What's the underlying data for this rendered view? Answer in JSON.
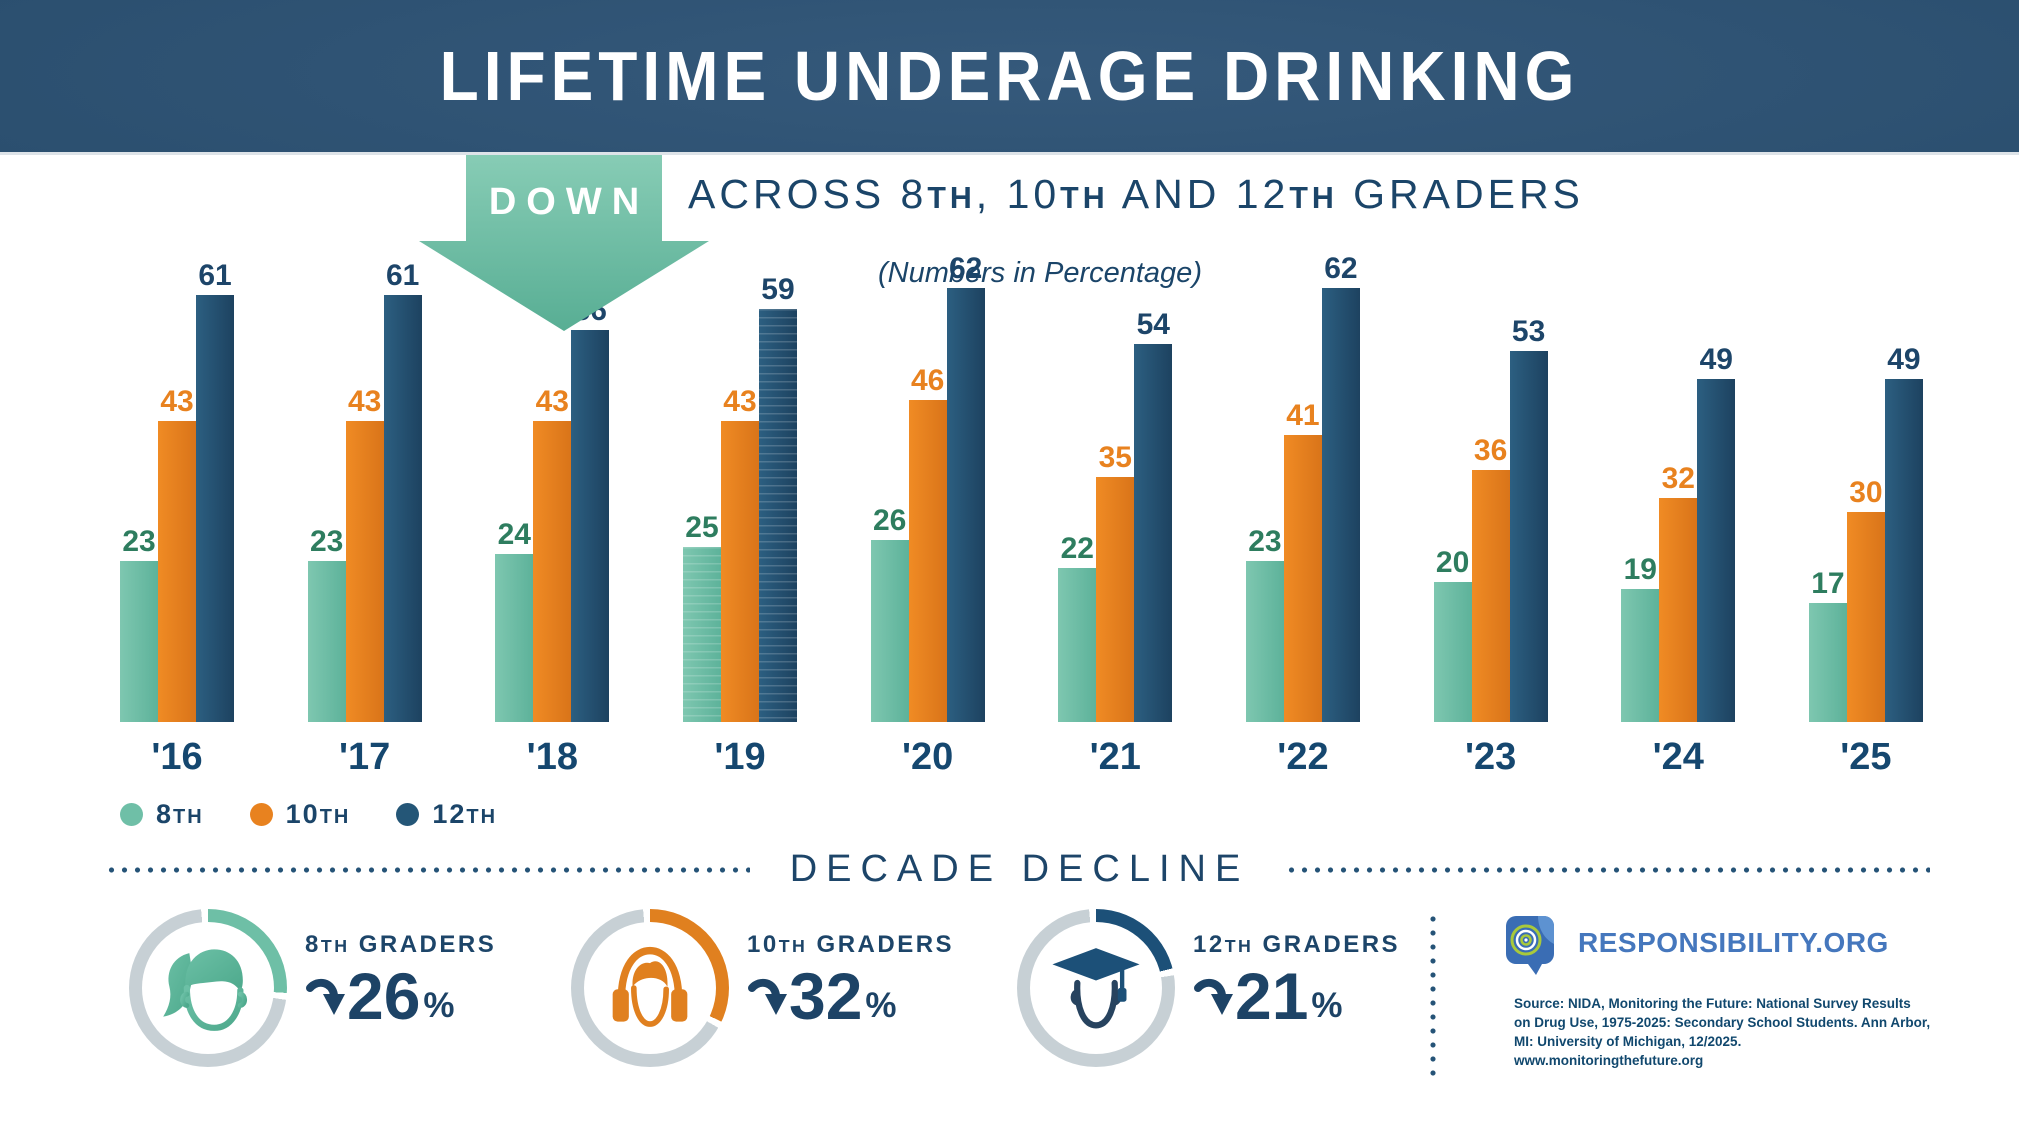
{
  "header": {
    "title": "LIFETIME UNDERAGE DRINKING"
  },
  "intro": {
    "down_label": "DOWN",
    "across_segments": [
      {
        "t": "ACROSS 8"
      },
      {
        "t": "TH",
        "s": true
      },
      {
        "t": ", 10"
      },
      {
        "t": "TH",
        "s": true
      },
      {
        "t": " AND 12"
      },
      {
        "t": "TH",
        "s": true
      },
      {
        "t": " GRADERS"
      }
    ],
    "across_plain": "ACROSS 8TH, 10TH AND 12TH GRADERS",
    "note": "(Numbers in Percentage)"
  },
  "chart_data": {
    "type": "bar",
    "title": "Lifetime underage drinking by grade",
    "unit": "percent",
    "categories": [
      "'16",
      "'17",
      "'18",
      "'19",
      "'20",
      "'21",
      "'22",
      "'23",
      "'24",
      "'25"
    ],
    "series": [
      {
        "name": "8TH",
        "color": "#6fbfa7",
        "label_color": "#2e7d5f",
        "values": [
          23,
          23,
          24,
          25,
          26,
          22,
          23,
          20,
          19,
          17
        ]
      },
      {
        "name": "10TH",
        "color": "#e8821f",
        "label_color": "#e8821f",
        "values": [
          43,
          43,
          43,
          43,
          46,
          35,
          41,
          36,
          32,
          30
        ]
      },
      {
        "name": "12TH",
        "color": "#245677",
        "label_color": "#1d4569",
        "values": [
          61,
          61,
          56,
          59,
          62,
          54,
          62,
          53,
          49,
          49
        ]
      }
    ],
    "ylim": [
      0,
      62
    ],
    "grid": false,
    "value_labels": true,
    "legend_position": "bottom-left",
    "striped_bars": {
      "category": "'19",
      "series": [
        "8TH",
        "12TH"
      ]
    }
  },
  "legend": {
    "items": [
      {
        "segments": [
          {
            "t": "8"
          },
          {
            "t": "TH",
            "s": true
          }
        ],
        "color": "#6fbfa7"
      },
      {
        "segments": [
          {
            "t": "10"
          },
          {
            "t": "TH",
            "s": true
          }
        ],
        "color": "#e8821f"
      },
      {
        "segments": [
          {
            "t": "12"
          },
          {
            "t": "TH",
            "s": true
          }
        ],
        "color": "#245677"
      }
    ]
  },
  "decade": {
    "title": "DECADE DECLINE",
    "stats": [
      {
        "group_segments": [
          {
            "t": "8"
          },
          {
            "t": "TH",
            "s": true
          },
          {
            "t": " GRADERS"
          }
        ],
        "value": 26,
        "display": "26",
        "unit": "%",
        "direction": "down",
        "ring_color": "#6ebfa6",
        "icon": "girl-face-icon"
      },
      {
        "group_segments": [
          {
            "t": "10"
          },
          {
            "t": "TH",
            "s": true
          },
          {
            "t": " GRADERS"
          }
        ],
        "value": 32,
        "display": "32",
        "unit": "%",
        "direction": "down",
        "ring_color": "#e0801f",
        "icon": "headphones-icon"
      },
      {
        "group_segments": [
          {
            "t": "12"
          },
          {
            "t": "TH",
            "s": true
          },
          {
            "t": " GRADERS"
          }
        ],
        "value": 21,
        "display": "21",
        "unit": "%",
        "direction": "down",
        "ring_color": "#1c5078",
        "icon": "graduate-cap-icon"
      }
    ]
  },
  "footer": {
    "brand": "RESPONSIBILITY.ORG",
    "source_lines": [
      "Source: NIDA, Monitoring the Future: National Survey Results",
      "on Drug Use, 1975-2025: Secondary School Students. Ann Arbor,",
      "MI: University of Michigan, 12/2025.",
      "www.monitoringthefuture.org"
    ]
  },
  "colors": {
    "navy_text": "#1d4569",
    "banner_dark": "#1d3a52",
    "banner_mid": "#35597b",
    "arrow_teal_top": "#87ccb5",
    "arrow_teal_bottom": "#58ae94",
    "divider_dots": "#255377",
    "ring_track": "#c7d0d5",
    "brand_blue": "#4577bd"
  }
}
